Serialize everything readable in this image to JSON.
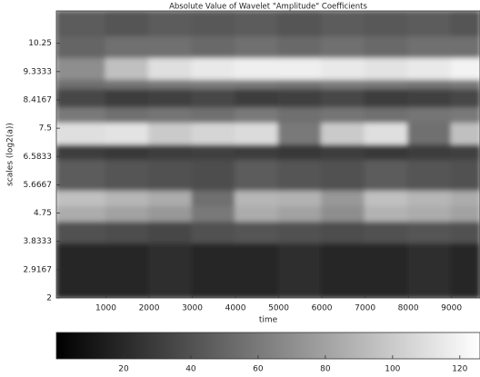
{
  "chart_data": {
    "type": "heatmap",
    "title": "Absolute Value of Wavelet \"Amplitude\" Coefficients",
    "x_label": "time",
    "y_label": "scales (log2(a))",
    "colormap": "gray",
    "xlim": [
      0,
      9660
    ],
    "xticks": [
      1000,
      2000,
      3000,
      4000,
      5000,
      6000,
      7000,
      8000,
      9000
    ],
    "ylim": [
      2,
      11.3
    ],
    "yticks": [
      2,
      2.9167,
      3.8333,
      4.75,
      5.6667,
      6.5833,
      7.5,
      8.4167,
      9.3333,
      10.25
    ],
    "clim": [
      0,
      126
    ],
    "cticks": [
      20,
      40,
      60,
      80,
      100,
      120
    ],
    "xbins": [
      0,
      1000,
      2000,
      3000,
      4000,
      5000,
      6000,
      7000,
      8000,
      9000,
      9660
    ],
    "ybins": [
      2,
      3.8,
      4.5,
      5.0,
      5.5,
      6.5,
      7.0,
      7.7,
      8.2,
      8.8,
      9.1,
      9.8,
      10.5,
      11.3
    ],
    "z": [
      [
        20,
        20,
        22,
        20,
        20,
        22,
        20,
        20,
        22,
        20
      ],
      [
        40,
        38,
        35,
        40,
        42,
        40,
        38,
        40,
        42,
        40
      ],
      [
        85,
        80,
        75,
        60,
        85,
        80,
        70,
        88,
        85,
        80
      ],
      [
        95,
        90,
        85,
        55,
        90,
        88,
        75,
        95,
        90,
        85
      ],
      [
        45,
        42,
        40,
        38,
        45,
        42,
        40,
        45,
        42,
        40
      ],
      [
        30,
        28,
        30,
        32,
        30,
        28,
        30,
        28,
        30,
        32
      ],
      [
        110,
        112,
        100,
        105,
        108,
        60,
        100,
        110,
        55,
        95
      ],
      [
        60,
        55,
        58,
        55,
        60,
        55,
        58,
        55,
        58,
        60
      ],
      [
        35,
        30,
        32,
        35,
        30,
        32,
        35,
        30,
        32,
        35
      ],
      [
        55,
        58,
        60,
        62,
        60,
        58,
        62,
        60,
        58,
        60
      ],
      [
        70,
        95,
        110,
        115,
        118,
        118,
        115,
        112,
        115,
        120
      ],
      [
        50,
        55,
        55,
        52,
        55,
        52,
        55,
        52,
        55,
        55
      ],
      [
        45,
        42,
        45,
        44,
        45,
        42,
        45,
        44,
        45,
        42
      ]
    ]
  }
}
